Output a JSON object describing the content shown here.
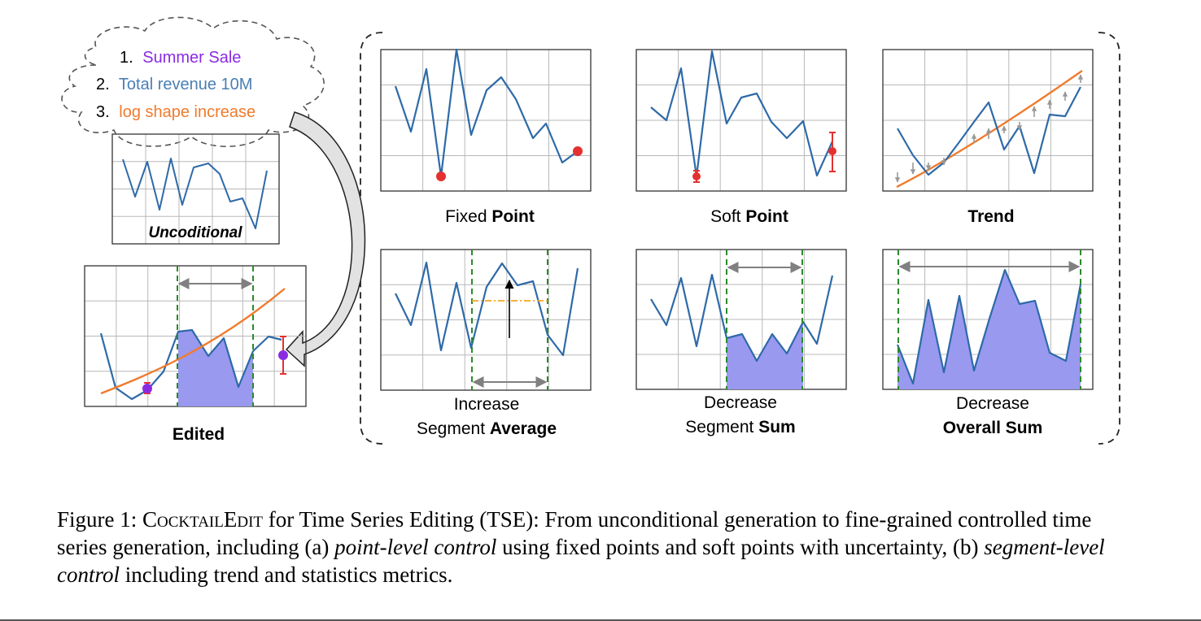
{
  "cloud": {
    "items": [
      {
        "num": "1.",
        "text": "Summer Sale",
        "color": "#8a2be2"
      },
      {
        "num": "2.",
        "text": "Total revenue 10M",
        "color": "#4a7fb5"
      },
      {
        "num": "3.",
        "text": "log shape increase",
        "color": "#f07b2d"
      }
    ]
  },
  "colors": {
    "series": "#2e6aa8",
    "trend": "#f07b2d",
    "fill": "#9999f0",
    "boundary": "#2a8a2a",
    "point": "#e53030",
    "purple": "#8a2be2",
    "arrow": "#808080"
  },
  "panels": {
    "unconditional": {
      "label": "Uncoditional"
    },
    "edited": {
      "label": "Edited"
    },
    "fixed_point": {
      "label_plain": "Fixed ",
      "label_bold": "Point"
    },
    "soft_point": {
      "label_plain": "Soft ",
      "label_bold": "Point"
    },
    "trend": {
      "label_bold": "Trend"
    },
    "segment_average": {
      "line1": "Increase",
      "line2_plain": "Segment ",
      "line2_bold": "Average"
    },
    "segment_sum": {
      "line1": "Decrease",
      "line2_plain": "Segment ",
      "line2_bold": "Sum"
    },
    "overall_sum": {
      "line1": "Decrease",
      "line2_bold": "Overall Sum"
    }
  },
  "caption": {
    "prefix": "Figure 1: ",
    "name": "CocktailEdit",
    "part1": " for Time Series Editing (TSE): From unconditional generation to fine-grained controlled time series generation, including (a) ",
    "italic1": "point-level control",
    "part2": " using fixed points and soft points with uncertainty, (b) ",
    "italic2": "segment-level control",
    "part3": " including trend and statistics metrics."
  }
}
